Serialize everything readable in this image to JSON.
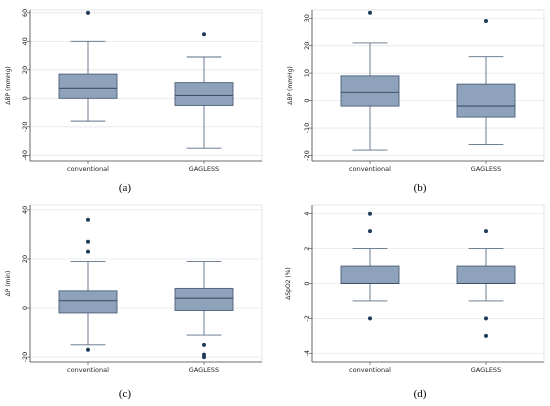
{
  "chart_data": [
    {
      "type": "boxplot",
      "panel_label": "(a)",
      "ylabel": "ΔBP (mmHg)",
      "categories": [
        "conventional",
        "GAGLESS"
      ],
      "y_ticks": [
        -40,
        -20,
        0,
        20,
        40,
        60
      ],
      "y_tick_labels": [
        "-40",
        "-20",
        "0",
        "20",
        "40",
        "60"
      ],
      "ylim": [
        -44,
        62
      ],
      "grid": true,
      "boxes": [
        {
          "name": "conventional",
          "min": -16,
          "q1": 0,
          "median": 7,
          "q3": 17,
          "max": 40,
          "outliers": [
            60
          ]
        },
        {
          "name": "GAGLESS",
          "min": -35,
          "q1": -5,
          "median": 2,
          "q3": 11,
          "max": 29,
          "outliers": [
            45
          ]
        }
      ]
    },
    {
      "type": "boxplot",
      "panel_label": "(b)",
      "ylabel": "ΔBP (mmHg)",
      "categories": [
        "conventional",
        "GAGLESS"
      ],
      "y_ticks": [
        -20,
        -10,
        0,
        10,
        20,
        30
      ],
      "y_tick_labels": [
        "-20",
        "-10",
        "0",
        "10",
        "20",
        "30"
      ],
      "ylim": [
        -22,
        33
      ],
      "grid": true,
      "boxes": [
        {
          "name": "conventional",
          "min": -18,
          "q1": -2,
          "median": 3,
          "q3": 9,
          "max": 21,
          "outliers": [
            32
          ]
        },
        {
          "name": "GAGLESS",
          "min": -16,
          "q1": -6,
          "median": -2,
          "q3": 6,
          "max": 16,
          "outliers": [
            29
          ]
        }
      ]
    },
    {
      "type": "boxplot",
      "panel_label": "(c)",
      "ylabel": "ΔP (min)",
      "categories": [
        "conventional",
        "GAGLESS"
      ],
      "y_ticks": [
        -20,
        0,
        20,
        40
      ],
      "y_tick_labels": [
        "-20",
        "0",
        "20",
        "40"
      ],
      "ylim": [
        -22,
        42
      ],
      "grid": true,
      "boxes": [
        {
          "name": "conventional",
          "min": -15,
          "q1": -2,
          "median": 3,
          "q3": 7,
          "max": 19,
          "outliers": [
            -17,
            23,
            27,
            36
          ]
        },
        {
          "name": "GAGLESS",
          "min": -11,
          "q1": -1,
          "median": 4,
          "q3": 8,
          "max": 19,
          "outliers": [
            -15,
            -19,
            -20
          ]
        }
      ]
    },
    {
      "type": "boxplot",
      "panel_label": "(d)",
      "ylabel": "ΔSpO2 (%)",
      "categories": [
        "conventional",
        "GAGLESS"
      ],
      "y_ticks": [
        -4,
        -2,
        0,
        2,
        4
      ],
      "y_tick_labels": [
        "-4",
        "-2",
        "0",
        "2",
        "4"
      ],
      "ylim": [
        -4.5,
        4.5
      ],
      "grid": true,
      "boxes": [
        {
          "name": "conventional",
          "min": -1,
          "q1": 0,
          "median": 0,
          "q3": 1,
          "max": 2,
          "outliers": [
            4,
            3,
            -2
          ]
        },
        {
          "name": "GAGLESS",
          "min": -1,
          "q1": 0,
          "median": 0,
          "q3": 1,
          "max": 2,
          "outliers": [
            3,
            -2,
            -3
          ]
        }
      ]
    }
  ],
  "colors": {
    "box_fill": "#8ea3bb",
    "box_stroke": "#4a5f78",
    "whisker": "#5b6f86",
    "median": "#3c5068",
    "outlier": "#1f3b5a",
    "grid": "#e6e6e6",
    "frame": "#e0e0e0",
    "axis": "#444444"
  }
}
